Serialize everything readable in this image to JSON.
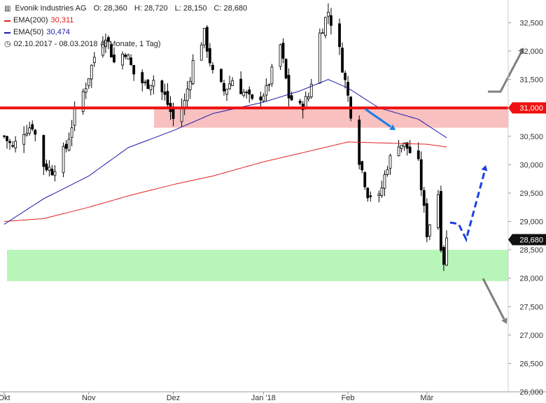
{
  "chart_data": {
    "type": "candlestick",
    "title": "Evonik Industries AG",
    "ohlc": {
      "open": "O: 28,360",
      "high": "H: 28,720",
      "low": "L: 28,150",
      "close": "C: 28,680"
    },
    "legend": [
      {
        "label": "EMA(200)",
        "value": "30,311",
        "color": "#e02020"
      },
      {
        "label": "EMA(50)",
        "value": "30,474",
        "color": "#1c1ca8"
      }
    ],
    "period": "02.10.2017 - 08.03.2018",
    "period_note": "(5 Monate, 1 Tag)",
    "y_ticks": [
      "32,500",
      "32,000",
      "31,500",
      "31,000",
      "30,500",
      "30,000",
      "29,500",
      "29,000",
      "28,500",
      "28,000",
      "27,500",
      "27,000",
      "26,500",
      "26,000"
    ],
    "y_tick_values": [
      32500,
      32000,
      31500,
      31000,
      30500,
      30000,
      29500,
      29000,
      28500,
      28000,
      27500,
      27000,
      26500,
      26000
    ],
    "ylim": [
      26000,
      32900
    ],
    "x_ticks": [
      "Okt",
      "Nov",
      "Dez",
      "Jan '18",
      "Feb",
      "Mär"
    ],
    "x_tick_dates": [
      "2017-10-02",
      "2017-11-01",
      "2017-12-01",
      "2018-01-02",
      "2018-02-01",
      "2018-03-01"
    ],
    "date_range": [
      "2017-10-02",
      "2018-03-08"
    ],
    "resistance_level": 31000,
    "resistance_label": "31,000",
    "resistance_zone": [
      30650,
      31000
    ],
    "support_zone": [
      27950,
      28500
    ],
    "last_price": 28680,
    "last_price_label": "28,680",
    "colors": {
      "bull": "#ffffff",
      "bear": "#000000",
      "resistance": "#ee1111",
      "resistance_zone": "#f9c0c0",
      "support_zone": "#b8f5b8",
      "arrow_gray": "#808080",
      "arrow_blue": "#1a7ee6",
      "arrow_dash": "#1a3fe0"
    },
    "close_anchors": [
      [
        "2017-10-02",
        30500
      ],
      [
        "2017-10-05",
        30300
      ],
      [
        "2017-10-09",
        30600
      ],
      [
        "2017-10-12",
        30700
      ],
      [
        "2017-10-16",
        30000
      ],
      [
        "2017-10-19",
        29900
      ],
      [
        "2017-10-24",
        30300
      ],
      [
        "2017-10-27",
        30900
      ],
      [
        "2017-10-31",
        31400
      ],
      [
        "2017-11-03",
        31900
      ],
      [
        "2017-11-07",
        32300
      ],
      [
        "2017-11-10",
        31800
      ],
      [
        "2017-11-14",
        32000
      ],
      [
        "2017-11-17",
        31600
      ],
      [
        "2017-11-21",
        31400
      ],
      [
        "2017-11-24",
        31500
      ],
      [
        "2017-11-28",
        31200
      ],
      [
        "2017-12-01",
        30800
      ],
      [
        "2017-12-05",
        31100
      ],
      [
        "2017-12-08",
        31800
      ],
      [
        "2017-12-12",
        32300
      ],
      [
        "2017-12-15",
        31600
      ],
      [
        "2017-12-19",
        31300
      ],
      [
        "2017-12-22",
        31500
      ],
      [
        "2017-12-29",
        31100
      ],
      [
        "2018-01-03",
        31300
      ],
      [
        "2018-01-08",
        32100
      ],
      [
        "2018-01-11",
        31200
      ],
      [
        "2018-01-15",
        31000
      ],
      [
        "2018-01-18",
        31200
      ],
      [
        "2018-01-22",
        32300
      ],
      [
        "2018-01-25",
        32700
      ],
      [
        "2018-01-29",
        32000
      ],
      [
        "2018-02-01",
        31200
      ],
      [
        "2018-02-05",
        30100
      ],
      [
        "2018-02-08",
        29500
      ],
      [
        "2018-02-12",
        29400
      ],
      [
        "2018-02-15",
        30000
      ],
      [
        "2018-02-19",
        30400
      ],
      [
        "2018-02-22",
        30300
      ],
      [
        "2018-02-26",
        30000
      ],
      [
        "2018-03-01",
        28800
      ],
      [
        "2018-03-05",
        29500
      ],
      [
        "2018-03-06",
        28600
      ],
      [
        "2018-03-07",
        28300
      ],
      [
        "2018-03-08",
        28680
      ]
    ],
    "ema200_anchors": [
      [
        "2017-10-02",
        29000
      ],
      [
        "2017-10-16",
        29050
      ],
      [
        "2017-11-01",
        29250
      ],
      [
        "2017-11-15",
        29450
      ],
      [
        "2017-12-01",
        29650
      ],
      [
        "2017-12-15",
        29800
      ],
      [
        "2018-01-02",
        30050
      ],
      [
        "2018-01-15",
        30200
      ],
      [
        "2018-02-01",
        30400
      ],
      [
        "2018-02-15",
        30380
      ],
      [
        "2018-03-01",
        30360
      ],
      [
        "2018-03-08",
        30311
      ]
    ],
    "ema50_anchors": [
      [
        "2017-10-02",
        28950
      ],
      [
        "2017-10-16",
        29400
      ],
      [
        "2017-11-01",
        29800
      ],
      [
        "2017-11-15",
        30300
      ],
      [
        "2017-12-01",
        30600
      ],
      [
        "2017-12-15",
        30900
      ],
      [
        "2018-01-02",
        31100
      ],
      [
        "2018-01-15",
        31300
      ],
      [
        "2018-01-25",
        31500
      ],
      [
        "2018-02-01",
        31350
      ],
      [
        "2018-02-12",
        31000
      ],
      [
        "2018-02-26",
        30800
      ],
      [
        "2018-03-08",
        30474
      ]
    ]
  }
}
